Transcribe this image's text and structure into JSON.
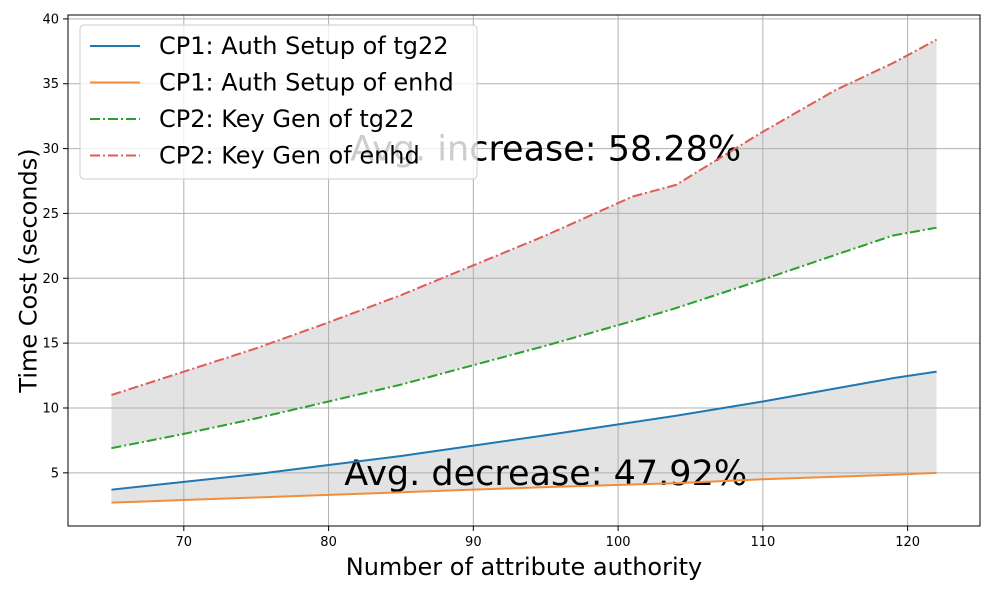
{
  "chart_data": {
    "type": "line",
    "xlabel": "Number of attribute authority",
    "ylabel": "Time Cost (seconds)",
    "xlim": [
      62,
      125
    ],
    "ylim": [
      0.9,
      40.3
    ],
    "xticks": [
      70,
      80,
      90,
      100,
      110,
      120
    ],
    "yticks": [
      5,
      10,
      15,
      20,
      25,
      30,
      35,
      40
    ],
    "grid": true,
    "legend_position": "top-left",
    "x": [
      65,
      70,
      75,
      80,
      85,
      90,
      95,
      101,
      104,
      110,
      115,
      119,
      122
    ],
    "series": [
      {
        "name": "CP1: Auth Setup of tg22",
        "style": "solid",
        "color": "#1f77b4",
        "values": [
          3.7,
          4.3,
          4.9,
          5.6,
          6.3,
          7.1,
          7.9,
          8.9,
          9.4,
          10.5,
          11.5,
          12.3,
          12.8
        ]
      },
      {
        "name": "CP1: Auth Setup of enhd",
        "style": "solid",
        "color": "#f28e3b",
        "values": [
          2.7,
          2.9,
          3.1,
          3.3,
          3.5,
          3.7,
          3.9,
          4.1,
          4.2,
          4.5,
          4.7,
          4.85,
          5.0
        ]
      },
      {
        "name": "CP2: Key Gen of tg22",
        "style": "dashdot",
        "color": "#2ca02c",
        "values": [
          6.9,
          8.0,
          9.2,
          10.5,
          11.8,
          13.3,
          14.8,
          16.7,
          17.7,
          19.9,
          21.8,
          23.3,
          23.9
        ]
      },
      {
        "name": "CP2: Key Gen of enhd",
        "style": "dashdot",
        "color": "#e05c55",
        "values": [
          11.0,
          12.8,
          14.6,
          16.6,
          18.7,
          21.0,
          23.3,
          26.3,
          27.2,
          31.3,
          34.5,
          36.6,
          38.4
        ]
      }
    ],
    "fills": [
      {
        "between": [
          0,
          1
        ],
        "color": "#e3e3e3"
      },
      {
        "between": [
          2,
          3
        ],
        "color": "#e3e3e3"
      }
    ],
    "annotations": [
      {
        "text": "Avg. increase: 58.28%",
        "x": 95,
        "y": 30
      },
      {
        "text": "Avg. decrease: 47.92%",
        "x": 95,
        "y": 5
      }
    ]
  }
}
